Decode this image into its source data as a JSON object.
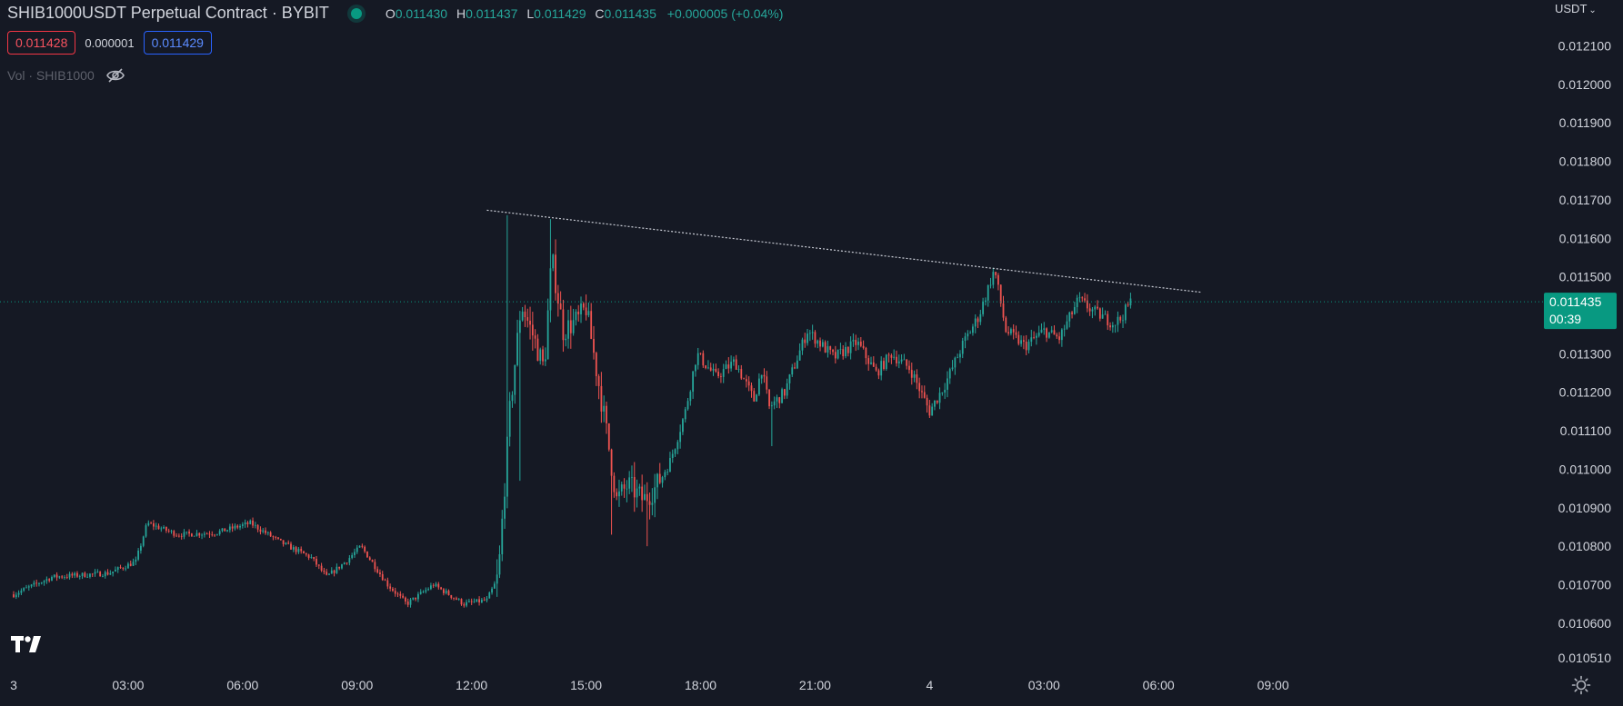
{
  "header": {
    "title": "SHIB1000USDT Perpetual Contract · BYBIT",
    "ohlc": [
      {
        "k": "O",
        "v": "0.011430"
      },
      {
        "k": "H",
        "v": "0.011437"
      },
      {
        "k": "L",
        "v": "0.011429"
      },
      {
        "k": "C",
        "v": "0.011435"
      }
    ],
    "change": "+0.000005 (+0.04%)"
  },
  "trade": {
    "sell": "0.011428",
    "spread": "0.000001",
    "buy": "0.011429"
  },
  "volume": {
    "label": "Vol · SHIB1000"
  },
  "axis": {
    "currency": "USDT"
  },
  "colors": {
    "background": "#151924",
    "up": "#26a69a",
    "down": "#ef5350",
    "text": "#d1d4dc",
    "price_label_bg": "#089981"
  },
  "icons": {
    "status": "market-open-dot-icon",
    "visibility": "eye-off-icon",
    "logo": "tradingview-logo-icon",
    "settings": "gear-icon"
  },
  "chart_data": {
    "type": "candlestick",
    "symbol": "SHIB1000USDT",
    "y_ticks": [
      "0.012100",
      "0.012000",
      "0.011900",
      "0.011800",
      "0.011700",
      "0.011600",
      "0.011500",
      "0.011400",
      "0.011300",
      "0.011200",
      "0.011100",
      "0.011000",
      "0.010900",
      "0.010800",
      "0.010700",
      "0.010600",
      "0.010510"
    ],
    "y_tick_values": [
      0.0121,
      0.012,
      0.0119,
      0.0118,
      0.0117,
      0.0116,
      0.0115,
      0.0114,
      0.0113,
      0.0112,
      0.0111,
      0.011,
      0.0109,
      0.0108,
      0.0107,
      0.0106,
      0.01051
    ],
    "ylim": [
      0.01051,
      0.01212
    ],
    "x_ticks": [
      "3",
      "03:00",
      "06:00",
      "09:00",
      "12:00",
      "15:00",
      "18:00",
      "21:00",
      "4",
      "03:00",
      "06:00",
      "09:00"
    ],
    "x_tick_hours": [
      0,
      3,
      6,
      9,
      12,
      15,
      18,
      21,
      24,
      27,
      30,
      33
    ],
    "xlim_hours": [
      0,
      37.5
    ],
    "last_price": {
      "value": 0.011435,
      "label": "0.011435",
      "countdown": "00:39"
    },
    "trendline": {
      "start": {
        "hour": 12.4,
        "price": 0.011673
      },
      "end": {
        "hour": 31.1,
        "price": 0.01146
      }
    },
    "path_keypoints": [
      [
        0.0,
        0.010675
      ],
      [
        1.0,
        0.01072
      ],
      [
        2.5,
        0.01073
      ],
      [
        3.2,
        0.01076
      ],
      [
        3.5,
        0.01086
      ],
      [
        4.3,
        0.01083
      ],
      [
        5.3,
        0.010835
      ],
      [
        6.2,
        0.01086
      ],
      [
        7.0,
        0.01081
      ],
      [
        7.8,
        0.01077
      ],
      [
        8.2,
        0.01072
      ],
      [
        8.7,
        0.01076
      ],
      [
        9.1,
        0.0108
      ],
      [
        9.8,
        0.0107
      ],
      [
        10.3,
        0.01065
      ],
      [
        11.0,
        0.0107
      ],
      [
        11.8,
        0.01065
      ],
      [
        12.4,
        0.01066
      ],
      [
        12.7,
        0.01072
      ],
      [
        13.0,
        0.01115
      ],
      [
        13.3,
        0.01143
      ],
      [
        13.6,
        0.01135
      ],
      [
        13.9,
        0.01126
      ],
      [
        14.1,
        0.01155
      ],
      [
        14.4,
        0.01136
      ],
      [
        14.8,
        0.01139
      ],
      [
        15.0,
        0.01142
      ],
      [
        15.2,
        0.0113
      ],
      [
        15.5,
        0.01112
      ],
      [
        15.8,
        0.01092
      ],
      [
        16.1,
        0.01096
      ],
      [
        16.5,
        0.01092
      ],
      [
        16.8,
        0.01095
      ],
      [
        17.2,
        0.01102
      ],
      [
        17.6,
        0.01115
      ],
      [
        17.9,
        0.0113
      ],
      [
        18.4,
        0.01124
      ],
      [
        18.9,
        0.01128
      ],
      [
        19.4,
        0.01118
      ],
      [
        19.6,
        0.01126
      ],
      [
        19.8,
        0.01116
      ],
      [
        20.2,
        0.0112
      ],
      [
        20.8,
        0.01136
      ],
      [
        21.5,
        0.01129
      ],
      [
        22.1,
        0.01133
      ],
      [
        22.6,
        0.01125
      ],
      [
        23.0,
        0.0113
      ],
      [
        23.5,
        0.01126
      ],
      [
        24.0,
        0.01115
      ],
      [
        24.4,
        0.01122
      ],
      [
        24.9,
        0.01133
      ],
      [
        25.3,
        0.0114
      ],
      [
        25.7,
        0.01152
      ],
      [
        26.0,
        0.01136
      ],
      [
        26.5,
        0.01132
      ],
      [
        27.0,
        0.01136
      ],
      [
        27.4,
        0.01134
      ],
      [
        27.9,
        0.01144
      ],
      [
        28.3,
        0.01141
      ],
      [
        28.8,
        0.01138
      ],
      [
        29.0,
        0.01139
      ],
      [
        29.3,
        0.01144
      ]
    ]
  }
}
